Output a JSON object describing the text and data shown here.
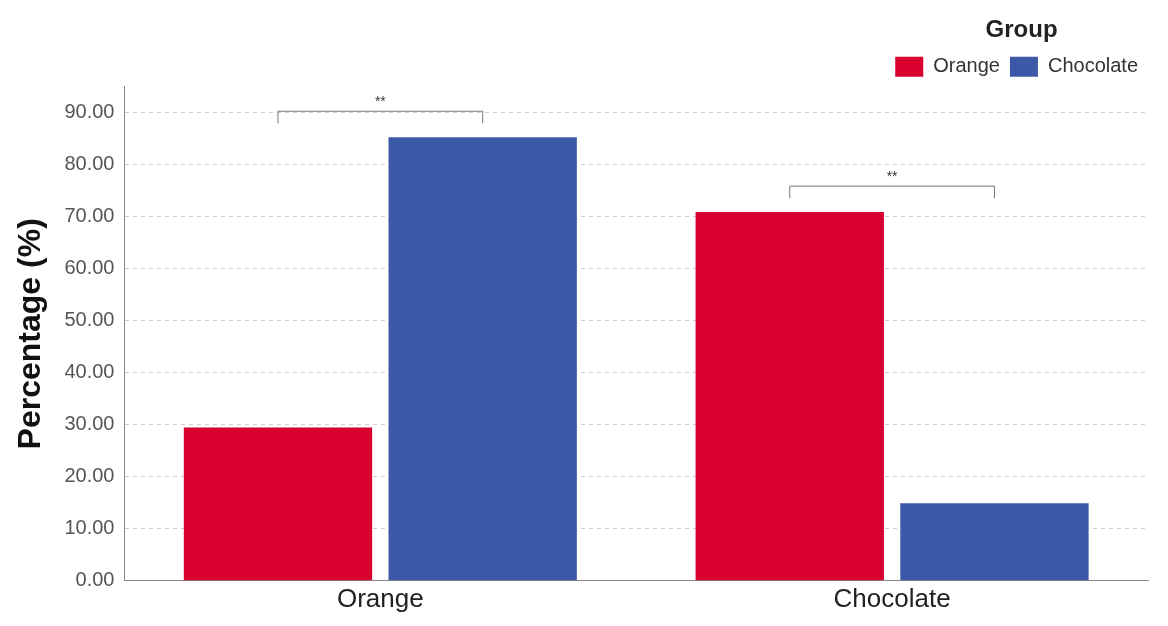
{
  "chart_data": {
    "type": "bar",
    "ylabel": "Percentage (%)",
    "legend_title": "Group",
    "categories": [
      "Orange",
      "Chocolate"
    ],
    "series": [
      {
        "name": "Orange",
        "color": "#d7002f",
        "values": [
          29.5,
          70.9
        ]
      },
      {
        "name": "Chocolate",
        "color": "#3c59a7",
        "values": [
          85.3,
          14.9
        ]
      }
    ],
    "ylim": [
      0,
      95
    ],
    "yticks": [
      {
        "value": 0,
        "label": "0.00"
      },
      {
        "value": 10,
        "label": "10.00"
      },
      {
        "value": 20,
        "label": "20.00"
      },
      {
        "value": 30,
        "label": "30.00"
      },
      {
        "value": 40,
        "label": "40.00"
      },
      {
        "value": 50,
        "label": "50.00"
      },
      {
        "value": 60,
        "label": "60.00"
      },
      {
        "value": 70,
        "label": "70.00"
      },
      {
        "value": 80,
        "label": "80.00"
      },
      {
        "value": 90,
        "label": "90.00"
      }
    ],
    "grid": "y",
    "legend": "top right",
    "annotations": [
      "**",
      "**"
    ]
  }
}
